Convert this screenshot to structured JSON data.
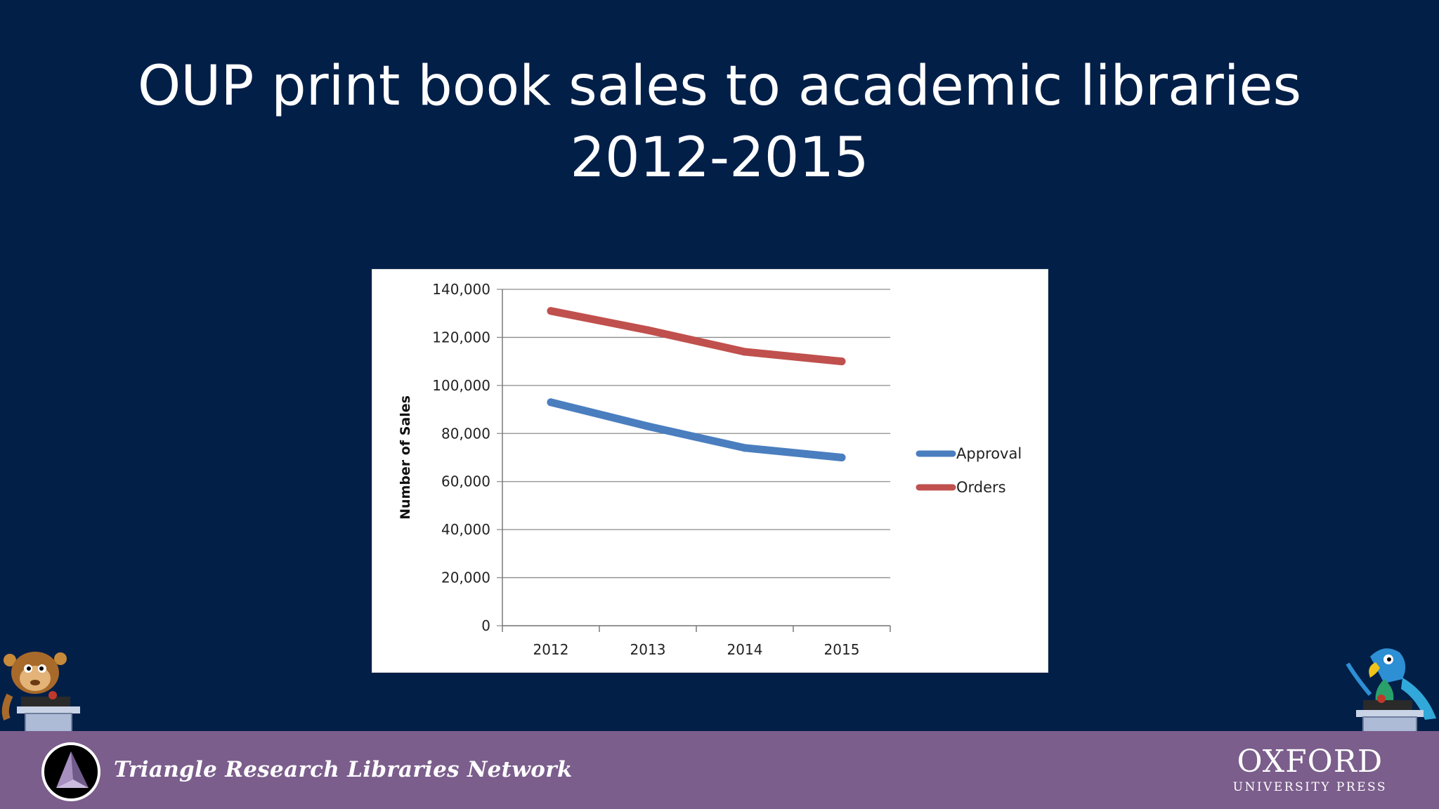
{
  "slide": {
    "title_line1": "OUP print book sales to academic libraries",
    "title_line2": "2012-2015"
  },
  "chart_data": {
    "type": "line",
    "categories": [
      "2012",
      "2013",
      "2014",
      "2015"
    ],
    "series": [
      {
        "name": "Approval",
        "values": [
          93000,
          83000,
          74000,
          70000
        ],
        "color": "#4a7ebf"
      },
      {
        "name": "Orders",
        "values": [
          131000,
          123000,
          114000,
          110000
        ],
        "color": "#c0504d"
      }
    ],
    "ylabel": "Number of Sales",
    "xlabel": "",
    "ylim": [
      0,
      140000
    ],
    "yticks": [
      0,
      20000,
      40000,
      60000,
      80000,
      100000,
      120000,
      140000
    ],
    "ytick_labels": [
      "0",
      "20,000",
      "40,000",
      "60,000",
      "80,000",
      "100,000",
      "120,000",
      "140,000"
    ],
    "grid": true,
    "legend_position": "right"
  },
  "footer": {
    "network_name": "Triangle Research Libraries Network",
    "oup_name": "OXFORD",
    "oup_sub": "UNIVERSITY PRESS",
    "bar_color": "#7b5e8c"
  },
  "icons": {
    "left_mascot": "monkey-mascot-icon",
    "right_mascot": "parrot-mascot-icon",
    "network_logo": "trln-triangle-logo"
  }
}
